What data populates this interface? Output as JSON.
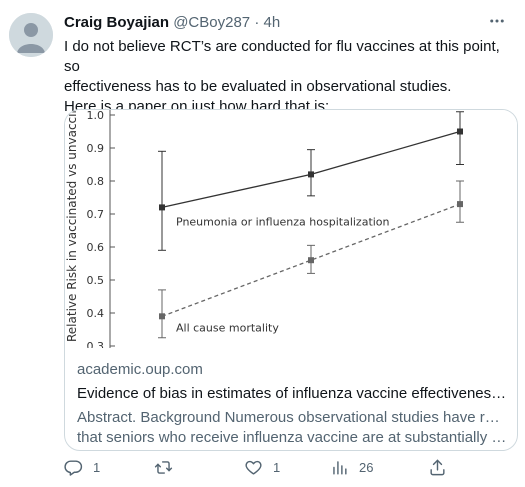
{
  "author": {
    "name": "Craig Boyajian",
    "handle": "@CBoy287",
    "separator": "·",
    "time": "4h"
  },
  "tweet": {
    "lines": [
      "I do not believe RCT’s are conducted for flu vaccines at this point, so",
      "effectiveness has to be evaluated in observational studies.",
      "Here is a paper on just how hard that is:"
    ]
  },
  "card": {
    "domain": "academic.oup.com",
    "title": "Evidence of bias in estimates of influenza vaccine effectiveness in s...",
    "description_lines": [
      "Abstract. Background Numerous observational studies have reported",
      "that seniors who receive influenza vaccine are at substantially lower..."
    ]
  },
  "chart_data": {
    "type": "line",
    "ylabel": "Relative Risk in vaccinated vs unvaccin",
    "ylim": [
      0.3,
      1.0
    ],
    "yticks": [
      "1.0",
      "0.9",
      "0.8",
      "0.7",
      "0.6",
      "0.5",
      "0.4",
      "0.3"
    ],
    "x": [
      1,
      2,
      3
    ],
    "series": [
      {
        "name": "Pneumonia or influenza hospitalization",
        "values": [
          0.72,
          0.82,
          0.95
        ],
        "lower": [
          0.59,
          0.755,
          0.85
        ],
        "upper": [
          0.89,
          0.895,
          1.01
        ],
        "style": "solid",
        "color": "#333333"
      },
      {
        "name": "All cause mortality",
        "values": [
          0.39,
          0.56,
          0.73
        ],
        "lower": [
          0.325,
          0.52,
          0.675
        ],
        "upper": [
          0.47,
          0.605,
          0.8
        ],
        "style": "dashed",
        "color": "#666666"
      }
    ],
    "grid": false
  },
  "actions": {
    "reply_count": "1",
    "retweet_count": "",
    "like_count": "1",
    "views_count": "26"
  },
  "colors": {
    "text_primary": "#0f1419",
    "text_secondary": "#536471",
    "border": "#cfd9de"
  }
}
